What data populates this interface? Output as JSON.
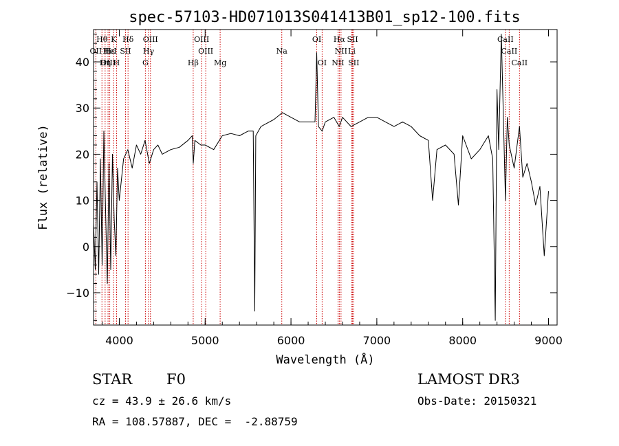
{
  "chart_data": {
    "type": "line",
    "title": "spec-57103-HD071013S041413B01_sp12-100.fits",
    "xlabel": "Wavelength (Å)",
    "ylabel": "Flux (relative)",
    "xlim": [
      3700,
      9100
    ],
    "ylim": [
      -17,
      47
    ],
    "xticks": [
      4000,
      5000,
      6000,
      7000,
      8000,
      9000
    ],
    "yticks": [
      -10,
      0,
      10,
      20,
      30,
      40
    ],
    "series": [
      {
        "name": "spectrum",
        "x": [
          3700,
          3720,
          3740,
          3760,
          3780,
          3800,
          3820,
          3840,
          3860,
          3880,
          3900,
          3920,
          3940,
          3960,
          3980,
          4000,
          4050,
          4100,
          4150,
          4200,
          4250,
          4300,
          4350,
          4400,
          4450,
          4500,
          4600,
          4700,
          4800,
          4850,
          4862,
          4880,
          4950,
          5000,
          5100,
          5200,
          5300,
          5400,
          5500,
          5560,
          5578,
          5590,
          5650,
          5700,
          5800,
          5900,
          6000,
          6100,
          6200,
          6280,
          6300,
          6320,
          6363,
          6400,
          6500,
          6563,
          6600,
          6700,
          6800,
          6900,
          7000,
          7100,
          7200,
          7300,
          7400,
          7500,
          7600,
          7650,
          7700,
          7800,
          7900,
          7950,
          8000,
          8100,
          8200,
          8300,
          8350,
          8380,
          8400,
          8420,
          8450,
          8498,
          8520,
          8542,
          8600,
          8662,
          8700,
          8750,
          8800,
          8850,
          8900,
          8950,
          9000
        ],
        "y": [
          5,
          -5,
          14,
          -6,
          19,
          -4,
          25,
          8,
          -8,
          18,
          -5,
          20,
          6,
          -2,
          17,
          10,
          19,
          21,
          17,
          22,
          20,
          23,
          18,
          21,
          22,
          20,
          21,
          21.5,
          23,
          24,
          18,
          23,
          22,
          22,
          21,
          24,
          24.5,
          24,
          25,
          25,
          -14,
          24,
          26,
          26.5,
          27.5,
          29,
          28,
          27,
          27,
          27,
          42,
          26,
          25,
          27,
          28,
          26,
          28,
          26,
          27,
          28,
          28,
          27,
          26,
          27,
          26,
          24,
          23,
          10,
          21,
          22,
          20,
          9,
          24,
          19,
          21,
          24,
          19,
          -16,
          34,
          21,
          46,
          10,
          28,
          22,
          17,
          26,
          15,
          18,
          14,
          9,
          13,
          -2,
          12
        ],
        "color": "#000000"
      }
    ],
    "lines": [
      {
        "label": "Hθ",
        "wavelength": 3798,
        "row": 0
      },
      {
        "label": "K",
        "wavelength": 3934,
        "row": 0
      },
      {
        "label": "Hδ",
        "wavelength": 4102,
        "row": 0
      },
      {
        "label": "OIII",
        "wavelength": 4363,
        "row": 0
      },
      {
        "label": "OIII",
        "wavelength": 4959,
        "row": 0
      },
      {
        "label": "OI",
        "wavelength": 6300,
        "row": 0
      },
      {
        "label": "Hα",
        "wavelength": 6563,
        "row": 0
      },
      {
        "label": "SII",
        "wavelength": 6717,
        "row": 0
      },
      {
        "label": "CaII",
        "wavelength": 8498,
        "row": 0
      },
      {
        "label": "OII",
        "wavelength": 3727,
        "row": 1
      },
      {
        "label": "Hε",
        "wavelength": 3889,
        "row": 1
      },
      {
        "label": "HeI",
        "wavelength": 3889,
        "row": 1
      },
      {
        "label": "SII",
        "wavelength": 4072,
        "row": 1
      },
      {
        "label": "Hγ",
        "wavelength": 4341,
        "row": 1
      },
      {
        "label": "OIII",
        "wavelength": 5007,
        "row": 1
      },
      {
        "label": "Na",
        "wavelength": 5893,
        "row": 1
      },
      {
        "label": "NII",
        "wavelength": 6583,
        "row": 1
      },
      {
        "label": "Li",
        "wavelength": 6708,
        "row": 1
      },
      {
        "label": "CaII",
        "wavelength": 8542,
        "row": 1
      },
      {
        "label": "OIII",
        "wavelength": 3869,
        "row": 2
      },
      {
        "label": "Hη",
        "wavelength": 3835,
        "row": 2
      },
      {
        "label": "H",
        "wavelength": 3968,
        "row": 2
      },
      {
        "label": "G",
        "wavelength": 4304,
        "row": 2
      },
      {
        "label": "Hβ",
        "wavelength": 4861,
        "row": 2
      },
      {
        "label": "Mg",
        "wavelength": 5175,
        "row": 2
      },
      {
        "label": "OI",
        "wavelength": 6363,
        "row": 2
      },
      {
        "label": "NII",
        "wavelength": 6548,
        "row": 2
      },
      {
        "label": "SII",
        "wavelength": 6731,
        "row": 2
      },
      {
        "label": "CaII",
        "wavelength": 8662,
        "row": 2
      }
    ]
  },
  "footer": {
    "object_class": "STAR",
    "subclass": "F0",
    "survey": "LAMOST DR3",
    "redshift": "cz = 43.9 ± 26.6 km/s",
    "obs_date": "Obs-Date: 20150321",
    "coords": "RA = 108.57887, DEC =  -2.88759"
  },
  "colors": {
    "line_markers": "#cc0000",
    "spectrum": "#000000",
    "axes": "#000000"
  }
}
